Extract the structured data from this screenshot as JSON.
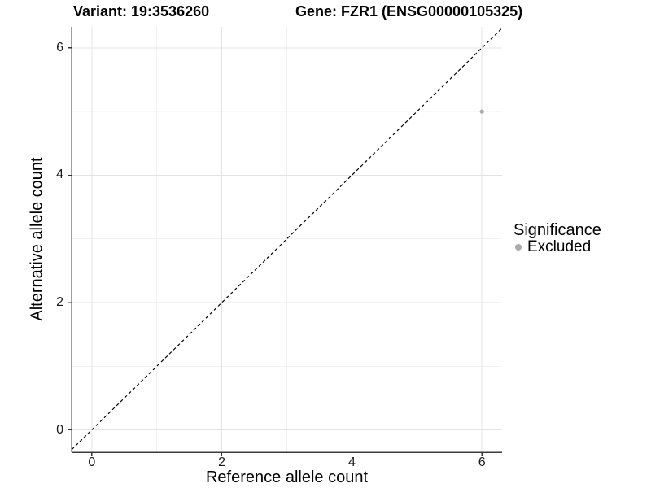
{
  "chart_data": {
    "type": "scatter",
    "titles": [
      "Variant: 19:3536260",
      "Gene: FZR1 (ENSG00000105325)"
    ],
    "xlabel": "Reference allele count",
    "ylabel": "Alternative allele count",
    "xlim": [
      -0.31,
      6.31
    ],
    "ylim": [
      -0.35,
      6.33
    ],
    "x_ticks": [
      0,
      2,
      4,
      6
    ],
    "y_ticks": [
      0,
      2,
      4,
      6
    ],
    "x_minor_ticks": [
      1,
      3,
      5
    ],
    "y_minor_ticks": [
      1,
      3,
      5
    ],
    "grid": "on",
    "legend": {
      "title": "Significance",
      "position": "right"
    },
    "series": [
      {
        "name": "Excluded",
        "color": "#ababab",
        "points": [
          {
            "x": 6,
            "y": 5
          }
        ]
      }
    ],
    "reference_line": {
      "kind": "identity",
      "equation": "y = x",
      "style": "dashed",
      "color": "#000000"
    }
  },
  "style": {
    "background": "#ffffff",
    "grid_major_color": "#e3e3e3",
    "grid_minor_color": "#f0f0f0",
    "axis_line_color": "#3c3c3c",
    "tick_color": "#333333",
    "text_color": "#000000"
  }
}
